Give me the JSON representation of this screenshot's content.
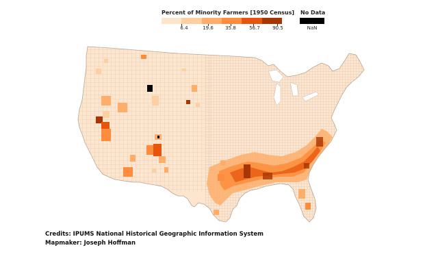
{
  "legend": {
    "title": "Percent of Minority Farmers [1950 Census]",
    "ticks": [
      "6.4",
      "19.6",
      "35.8",
      "56.7",
      "90.5"
    ],
    "bin_colors": [
      "#fee6ce",
      "#fdd0a2",
      "#fdae6b",
      "#fd8d3c",
      "#e6550d",
      "#a63603"
    ],
    "no_data_title": "No Data",
    "no_data_label": "NaN",
    "no_data_color": "#000000"
  },
  "map": {
    "base_color": "#fee6ce",
    "border_color": "#c9b5a5"
  },
  "credits": "Credits: IPUMS National Historical Geographic Information System",
  "mapmaker": "Mapmaker: Joseph Hoffman"
}
